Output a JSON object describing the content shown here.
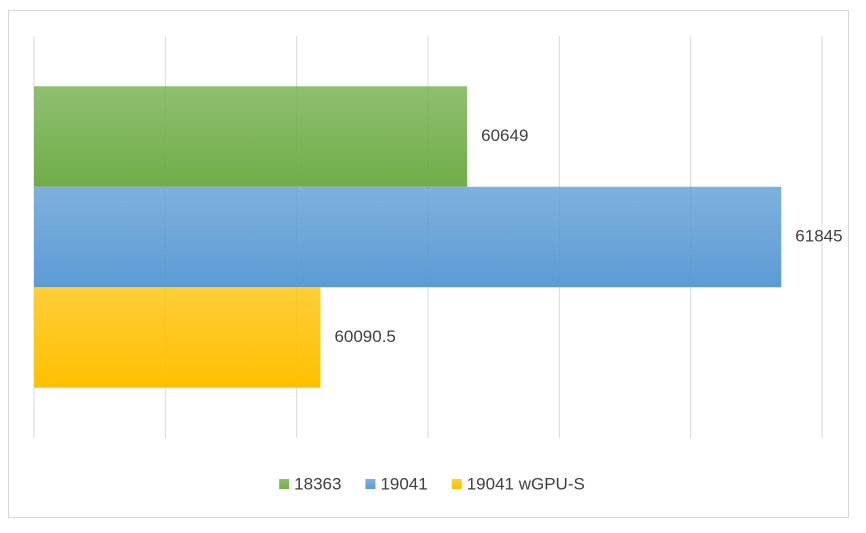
{
  "chart_data": {
    "type": "hbar",
    "categories": [
      null
    ],
    "series": [
      {
        "name": "18363",
        "color": "#70ad47",
        "values": [
          60649
        ]
      },
      {
        "name": "19041",
        "color": "#5b9bd5",
        "values": [
          61845
        ]
      },
      {
        "name": "19041 wGPU-S",
        "color": "#ffc000",
        "values": [
          60090.5
        ]
      }
    ],
    "xlim": [
      59000,
      62000
    ],
    "xticks": [
      59000,
      59500,
      60000,
      60500,
      61000,
      61500,
      62000
    ],
    "show_tick_labels": false,
    "grid": true,
    "legend": "bottom"
  }
}
